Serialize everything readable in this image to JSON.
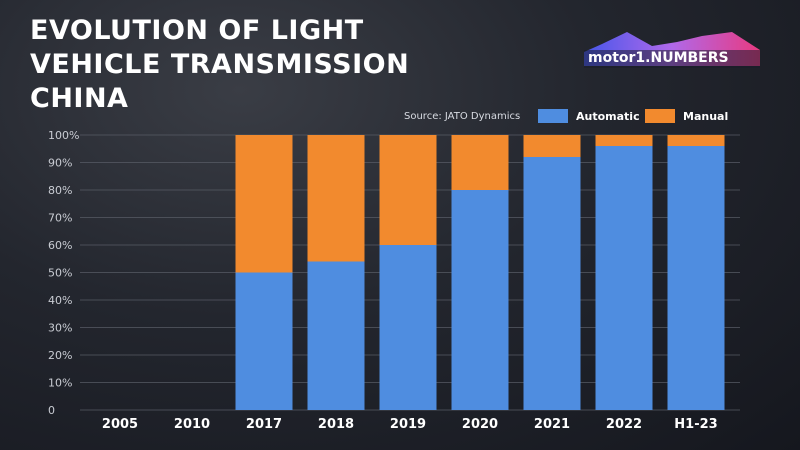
{
  "title_lines": [
    "EVOLUTION OF LIGHT",
    "VEHICLE TRANSMISSION",
    "CHINA"
  ],
  "logo": {
    "text": "motor1.NUMBERS",
    "icon": "motor1-numbers-logo"
  },
  "source": "Source: JATO Dynamics",
  "colors": {
    "automatic": "#4f8de0",
    "manual": "#f28a2e"
  },
  "chart_data": {
    "type": "bar",
    "stacked": true,
    "categories": [
      "2005",
      "2010",
      "2017",
      "2018",
      "2019",
      "2020",
      "2021",
      "2022",
      "H1-23"
    ],
    "series": [
      {
        "name": "Automatic",
        "values": [
          null,
          null,
          50,
          54,
          60,
          80,
          92,
          96,
          96
        ]
      },
      {
        "name": "Manual",
        "values": [
          null,
          null,
          50,
          46,
          40,
          20,
          8,
          4,
          4
        ]
      }
    ],
    "ylim": [
      0,
      100
    ],
    "yticks": [
      "0",
      "10%",
      "20%",
      "30%",
      "40%",
      "50%",
      "60%",
      "70%",
      "80%",
      "90%",
      "100%"
    ],
    "grid": true,
    "legend_position": "top-right"
  }
}
